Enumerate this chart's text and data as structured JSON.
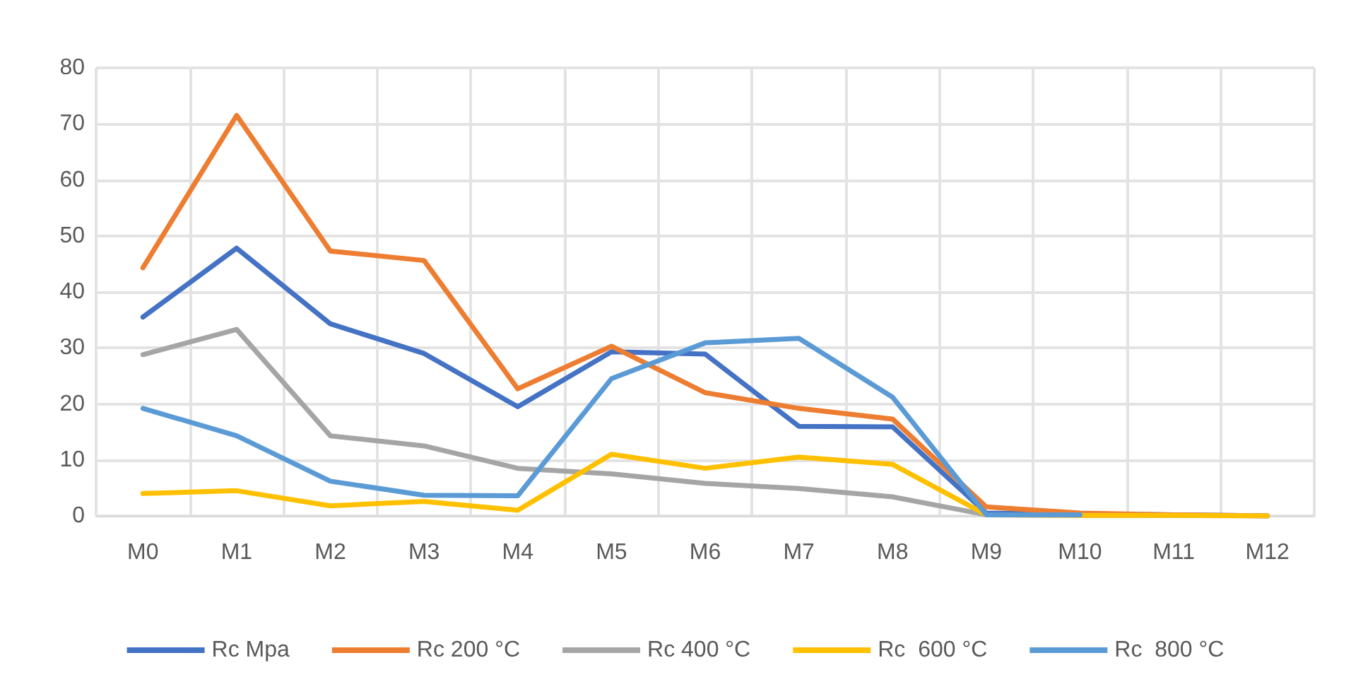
{
  "chart_data": {
    "type": "line",
    "categories": [
      "M0",
      "M1",
      "M2",
      "M3",
      "M4",
      "M5",
      "M6",
      "M7",
      "M8",
      "M9",
      "M10",
      "M11",
      "M12"
    ],
    "series": [
      {
        "name": "Rc Mpa",
        "color": "#4472c4",
        "values": [
          35.5,
          47.8,
          34.3,
          29,
          19.5,
          29.3,
          28.9,
          16,
          15.9,
          0.5,
          0.3,
          0.2,
          0
        ]
      },
      {
        "name": "Rc 200 °C",
        "color": "#ed7d31",
        "values": [
          44.3,
          71.5,
          47.3,
          45.6,
          22.7,
          30.3,
          22,
          19.2,
          17.3,
          1.6,
          0.5,
          0.2,
          0
        ]
      },
      {
        "name": "Rc 400 °C",
        "color": "#a5a5a5",
        "values": [
          28.8,
          33.3,
          14.3,
          12.5,
          8.5,
          7.5,
          5.8,
          4.9,
          3.4,
          0.2,
          0.1,
          0.1,
          0
        ]
      },
      {
        "name": "Rc  600 °C",
        "color": "#ffc000",
        "values": [
          4,
          4.5,
          1.8,
          2.6,
          1,
          11,
          8.5,
          10.5,
          9.2,
          0.2,
          0.1,
          0.1,
          0
        ]
      },
      {
        "name": "Rc  800 °C",
        "color": "#5b9bd5",
        "values": [
          19.2,
          14.3,
          6.2,
          3.7,
          3.6,
          24.5,
          30.9,
          31.7,
          21.2,
          0.2,
          0.2,
          null,
          null
        ]
      }
    ],
    "ylim": [
      0,
      80
    ],
    "yticks": [
      0,
      10,
      20,
      30,
      40,
      50,
      60,
      70,
      80
    ],
    "grid": true,
    "legend": "bottom",
    "marker": "none",
    "line_style": "solid"
  }
}
